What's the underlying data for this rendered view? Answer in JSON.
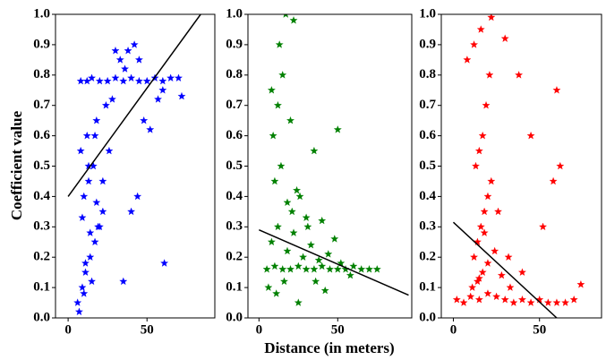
{
  "chart_data": [
    {
      "type": "scatter",
      "color": "#0000ff",
      "ylabel": "Coefficient value",
      "xlim": [
        -8,
        93
      ],
      "ylim": [
        0,
        1
      ],
      "xticks": [
        0,
        50
      ],
      "yticks": [
        {
          "value": 0,
          "label": "0.0"
        },
        0.1,
        0.2,
        0.3,
        0.4,
        0.5,
        0.6,
        0.7,
        0.8,
        0.9,
        {
          "value": 1,
          "label": "1.0"
        }
      ],
      "x": [
        8,
        12,
        15,
        20,
        25,
        30,
        35,
        40,
        45,
        50,
        55,
        60,
        65,
        70,
        6,
        9,
        11,
        14,
        17,
        19,
        22,
        10,
        13,
        16,
        8,
        12,
        18,
        24,
        7,
        10,
        15,
        20,
        9,
        13,
        17,
        28,
        33,
        38,
        42,
        30,
        36,
        45,
        48,
        26,
        22,
        18,
        14,
        11,
        60,
        57,
        52,
        44,
        40,
        35,
        61,
        72
      ],
      "values": [
        0.78,
        0.78,
        0.79,
        0.78,
        0.78,
        0.79,
        0.78,
        0.79,
        0.78,
        0.78,
        0.79,
        0.78,
        0.79,
        0.79,
        0.05,
        0.1,
        0.15,
        0.2,
        0.25,
        0.3,
        0.35,
        0.4,
        0.45,
        0.5,
        0.55,
        0.6,
        0.65,
        0.7,
        0.02,
        0.08,
        0.12,
        0.3,
        0.33,
        0.5,
        0.6,
        0.72,
        0.85,
        0.88,
        0.9,
        0.88,
        0.82,
        0.85,
        0.65,
        0.55,
        0.45,
        0.38,
        0.28,
        0.18,
        0.75,
        0.72,
        0.62,
        0.4,
        0.35,
        0.12,
        0.18,
        0.73
      ],
      "fit": {
        "color": "#000000",
        "x": [
          0,
          84
        ],
        "y": [
          0.4,
          1.0
        ]
      }
    },
    {
      "type": "scatter",
      "color": "#008000",
      "xlabel": "Distance (in meters)",
      "xlim": [
        -7,
        97
      ],
      "ylim": [
        0,
        1
      ],
      "xticks": [
        0,
        50
      ],
      "yticks": [
        {
          "value": 0,
          "label": "0.0"
        },
        0.1,
        0.2,
        0.3,
        0.4,
        0.5,
        0.6,
        0.7,
        0.8,
        0.9,
        {
          "value": 1,
          "label": "1.0"
        }
      ],
      "x": [
        5,
        10,
        15,
        20,
        25,
        30,
        35,
        40,
        45,
        50,
        55,
        60,
        65,
        70,
        75,
        8,
        12,
        18,
        22,
        28,
        33,
        38,
        44,
        52,
        58,
        6,
        11,
        16,
        21,
        26,
        31,
        36,
        42,
        48,
        10,
        14,
        18,
        24,
        30,
        9,
        12,
        15,
        20,
        13,
        17,
        22,
        50,
        35,
        25,
        40,
        8
      ],
      "values": [
        0.16,
        0.17,
        0.16,
        0.16,
        0.17,
        0.16,
        0.16,
        0.17,
        0.16,
        0.16,
        0.16,
        0.17,
        0.16,
        0.16,
        0.16,
        0.25,
        0.3,
        0.22,
        0.28,
        0.2,
        0.24,
        0.19,
        0.21,
        0.18,
        0.14,
        0.1,
        0.08,
        0.12,
        0.35,
        0.4,
        0.3,
        0.12,
        0.09,
        0.26,
        0.45,
        0.5,
        0.38,
        0.42,
        0.33,
        0.6,
        0.7,
        0.8,
        0.65,
        0.9,
        1.0,
        0.98,
        0.62,
        0.55,
        0.05,
        0.32,
        0.75
      ],
      "fit": {
        "color": "#000000",
        "x": [
          0,
          95
        ],
        "y": [
          0.29,
          0.075
        ]
      }
    },
    {
      "type": "scatter",
      "color": "#ff0000",
      "xlim": [
        -7,
        86
      ],
      "ylim": [
        0,
        1
      ],
      "xticks": [
        0,
        50
      ],
      "yticks": [
        {
          "value": 0,
          "label": "0.0"
        },
        0.1,
        0.2,
        0.3,
        0.4,
        0.5,
        0.6,
        0.7,
        0.8,
        0.9,
        {
          "value": 1,
          "label": "1.0"
        }
      ],
      "x": [
        2,
        6,
        10,
        15,
        20,
        25,
        30,
        35,
        40,
        45,
        50,
        55,
        60,
        65,
        70,
        12,
        14,
        16,
        18,
        20,
        22,
        13,
        15,
        17,
        19,
        21,
        11,
        14,
        17,
        20,
        24,
        28,
        33,
        8,
        12,
        16,
        22,
        30,
        38,
        45,
        15,
        18,
        26,
        32,
        40,
        60,
        62,
        74,
        52,
        58
      ],
      "values": [
        0.06,
        0.05,
        0.07,
        0.06,
        0.08,
        0.07,
        0.06,
        0.05,
        0.06,
        0.05,
        0.06,
        0.05,
        0.05,
        0.05,
        0.06,
        0.2,
        0.25,
        0.3,
        0.35,
        0.4,
        0.45,
        0.5,
        0.55,
        0.6,
        0.7,
        0.8,
        0.1,
        0.12,
        0.15,
        0.18,
        0.22,
        0.14,
        0.1,
        0.85,
        0.9,
        0.95,
        0.99,
        0.92,
        0.8,
        0.6,
        0.13,
        0.28,
        0.35,
        0.2,
        0.15,
        0.75,
        0.5,
        0.11,
        0.3,
        0.45
      ],
      "fit": {
        "color": "#000000",
        "x": [
          0,
          60
        ],
        "y": [
          0.315,
          0
        ]
      }
    }
  ]
}
